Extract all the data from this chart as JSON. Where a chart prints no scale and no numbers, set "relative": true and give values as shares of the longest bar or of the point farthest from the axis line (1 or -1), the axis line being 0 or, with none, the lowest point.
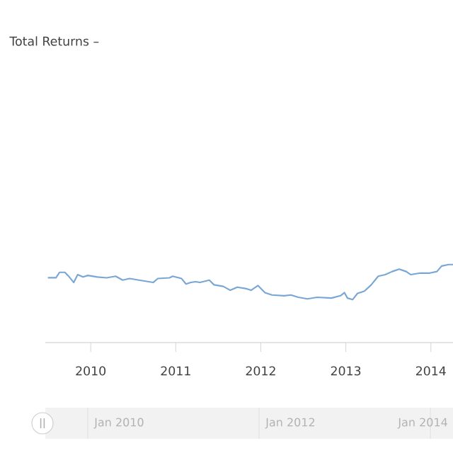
{
  "chart_data": {
    "type": "line",
    "title": "Total Returns –",
    "relative": true,
    "grid": false,
    "marker": "none",
    "line_style": "solid",
    "x": [
      "2009-07-01",
      "2009-08-05",
      "2009-08-20",
      "2009-09-12",
      "2009-10-01",
      "2009-10-20",
      "2009-11-06",
      "2009-11-29",
      "2009-12-20",
      "2010-01-30",
      "2010-03-10",
      "2010-04-18",
      "2010-05-18",
      "2010-06-17",
      "2010-07-27",
      "2010-09-26",
      "2010-10-16",
      "2010-12-05",
      "2010-12-19",
      "2011-01-26",
      "2011-02-14",
      "2011-03-07",
      "2011-03-27",
      "2011-04-15",
      "2011-05-25",
      "2011-06-14",
      "2011-07-24",
      "2011-08-23",
      "2011-09-22",
      "2011-11-01",
      "2011-11-20",
      "2011-12-20",
      "2012-01-19",
      "2012-02-18",
      "2012-04-11",
      "2012-05-10",
      "2012-06-11",
      "2012-07-20",
      "2012-08-31",
      "2012-10-31",
      "2012-12-09",
      "2012-12-26",
      "2013-01-08",
      "2013-01-30",
      "2013-02-20",
      "2013-03-22",
      "2013-04-20",
      "2013-05-20",
      "2013-06-19",
      "2013-07-19",
      "2013-08-18",
      "2013-09-17",
      "2013-10-07",
      "2013-11-16",
      "2013-12-27",
      "2014-01-27",
      "2014-02-16",
      "2014-03-18",
      "2014-04-06"
    ],
    "series": [
      {
        "color": "#7aa6d6",
        "values": [
          0.83,
          0.83,
          0.9,
          0.9,
          0.84,
          0.77,
          0.87,
          0.84,
          0.86,
          0.84,
          0.83,
          0.85,
          0.8,
          0.82,
          0.8,
          0.77,
          0.82,
          0.83,
          0.85,
          0.82,
          0.75,
          0.77,
          0.78,
          0.77,
          0.8,
          0.74,
          0.72,
          0.67,
          0.71,
          0.69,
          0.67,
          0.73,
          0.64,
          0.61,
          0.6,
          0.61,
          0.58,
          0.56,
          0.58,
          0.57,
          0.6,
          0.64,
          0.57,
          0.55,
          0.63,
          0.66,
          0.74,
          0.85,
          0.87,
          0.91,
          0.94,
          0.91,
          0.87,
          0.89,
          0.89,
          0.91,
          0.98,
          1,
          1
        ]
      }
    ],
    "xlim": [
      "2009-06-20",
      "2014-04-06"
    ],
    "xticks": [
      "2010",
      "2011",
      "2012",
      "2013",
      "2014"
    ],
    "annotations": [
      "Jan 2010",
      "Jan 2012",
      "Jan 2014"
    ]
  }
}
